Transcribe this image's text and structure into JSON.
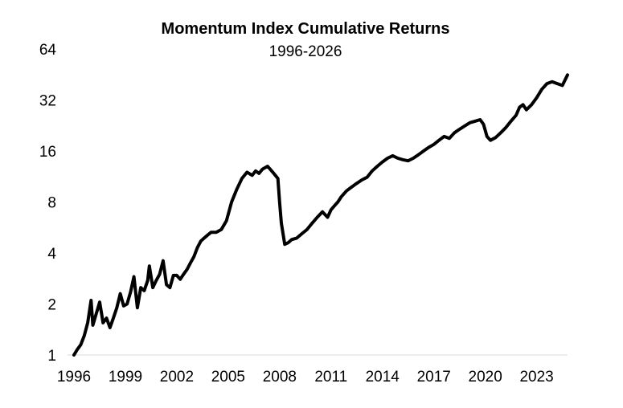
{
  "chart_data": {
    "type": "line",
    "title": "Momentum Index Cumulative Returns",
    "subtitle": "1996-2026",
    "xlabel": "",
    "ylabel": "",
    "y_scale": "log2",
    "ylim": [
      1,
      64
    ],
    "y_ticks": [
      "1",
      "2",
      "4",
      "8",
      "16",
      "32",
      "64"
    ],
    "xlim": [
      1996,
      2024.8
    ],
    "x_ticks": [
      "1996",
      "1999",
      "2002",
      "2005",
      "2008",
      "2011",
      "2014",
      "2017",
      "2020",
      "2023"
    ],
    "grid": false,
    "legend": "none",
    "line_color": "#000000",
    "series": [
      {
        "x": [
          1996.0,
          1996.2,
          1996.4,
          1996.6,
          1996.8,
          1997.0,
          1997.1,
          1997.3,
          1997.5,
          1997.7,
          1997.9,
          1998.1,
          1998.3,
          1998.5,
          1998.7,
          1998.9,
          1999.1,
          1999.3,
          1999.5,
          1999.7,
          1999.9,
          2000.1,
          2000.3,
          2000.4,
          2000.6,
          2000.8,
          2001.0,
          2001.2,
          2001.4,
          2001.6,
          2001.8,
          2002.0,
          2002.2,
          2002.4,
          2002.6,
          2002.8,
          2003.0,
          2003.2,
          2003.4,
          2003.6,
          2003.8,
          2004.0,
          2004.3,
          2004.6,
          2004.9,
          2005.2,
          2005.5,
          2005.8,
          2006.1,
          2006.4,
          2006.6,
          2006.8,
          2007.0,
          2007.3,
          2007.6,
          2007.9,
          2008.0,
          2008.1,
          2008.2,
          2008.3,
          2008.5,
          2008.7,
          2009.0,
          2009.3,
          2009.6,
          2009.9,
          2010.2,
          2010.5,
          2010.8,
          2011.0,
          2011.2,
          2011.4,
          2011.6,
          2011.9,
          2012.2,
          2012.5,
          2012.8,
          2013.1,
          2013.4,
          2013.7,
          2014.0,
          2014.3,
          2014.6,
          2014.9,
          2015.2,
          2015.5,
          2015.8,
          2016.1,
          2016.4,
          2016.7,
          2017.0,
          2017.3,
          2017.6,
          2017.9,
          2018.2,
          2018.5,
          2018.8,
          2019.1,
          2019.4,
          2019.7,
          2019.9,
          2020.1,
          2020.3,
          2020.6,
          2020.9,
          2021.2,
          2021.5,
          2021.8,
          2022.0,
          2022.2,
          2022.4,
          2022.7,
          2023.0,
          2023.3,
          2023.6,
          2023.9,
          2024.2,
          2024.5,
          2024.8
        ],
        "values": [
          1.0,
          1.08,
          1.15,
          1.3,
          1.55,
          2.1,
          1.5,
          1.75,
          2.05,
          1.55,
          1.65,
          1.45,
          1.65,
          1.9,
          2.3,
          1.95,
          2.0,
          2.35,
          2.9,
          1.9,
          2.5,
          2.4,
          2.75,
          3.35,
          2.5,
          2.75,
          3.0,
          3.6,
          2.6,
          2.5,
          2.95,
          2.95,
          2.8,
          3.0,
          3.2,
          3.5,
          3.8,
          4.3,
          4.7,
          4.9,
          5.1,
          5.3,
          5.3,
          5.5,
          6.2,
          8.0,
          9.5,
          11.0,
          12.0,
          11.5,
          12.2,
          11.8,
          12.5,
          13.0,
          12.0,
          11.0,
          8.0,
          6.0,
          5.2,
          4.5,
          4.6,
          4.8,
          4.9,
          5.2,
          5.5,
          6.0,
          6.5,
          7.0,
          6.5,
          7.2,
          7.6,
          8.0,
          8.6,
          9.3,
          9.8,
          10.3,
          10.8,
          11.2,
          12.2,
          13.0,
          13.8,
          14.5,
          15.0,
          14.5,
          14.2,
          14.0,
          14.5,
          15.2,
          16.0,
          16.8,
          17.5,
          18.5,
          19.5,
          19.0,
          20.5,
          21.5,
          22.5,
          23.5,
          24.0,
          24.5,
          23.0,
          19.5,
          18.5,
          19.2,
          20.5,
          22.0,
          24.0,
          26.0,
          29.0,
          30.0,
          28.0,
          30.0,
          33.0,
          37.0,
          40.0,
          41.0,
          40.0,
          39.0,
          45.0
        ]
      }
    ]
  }
}
